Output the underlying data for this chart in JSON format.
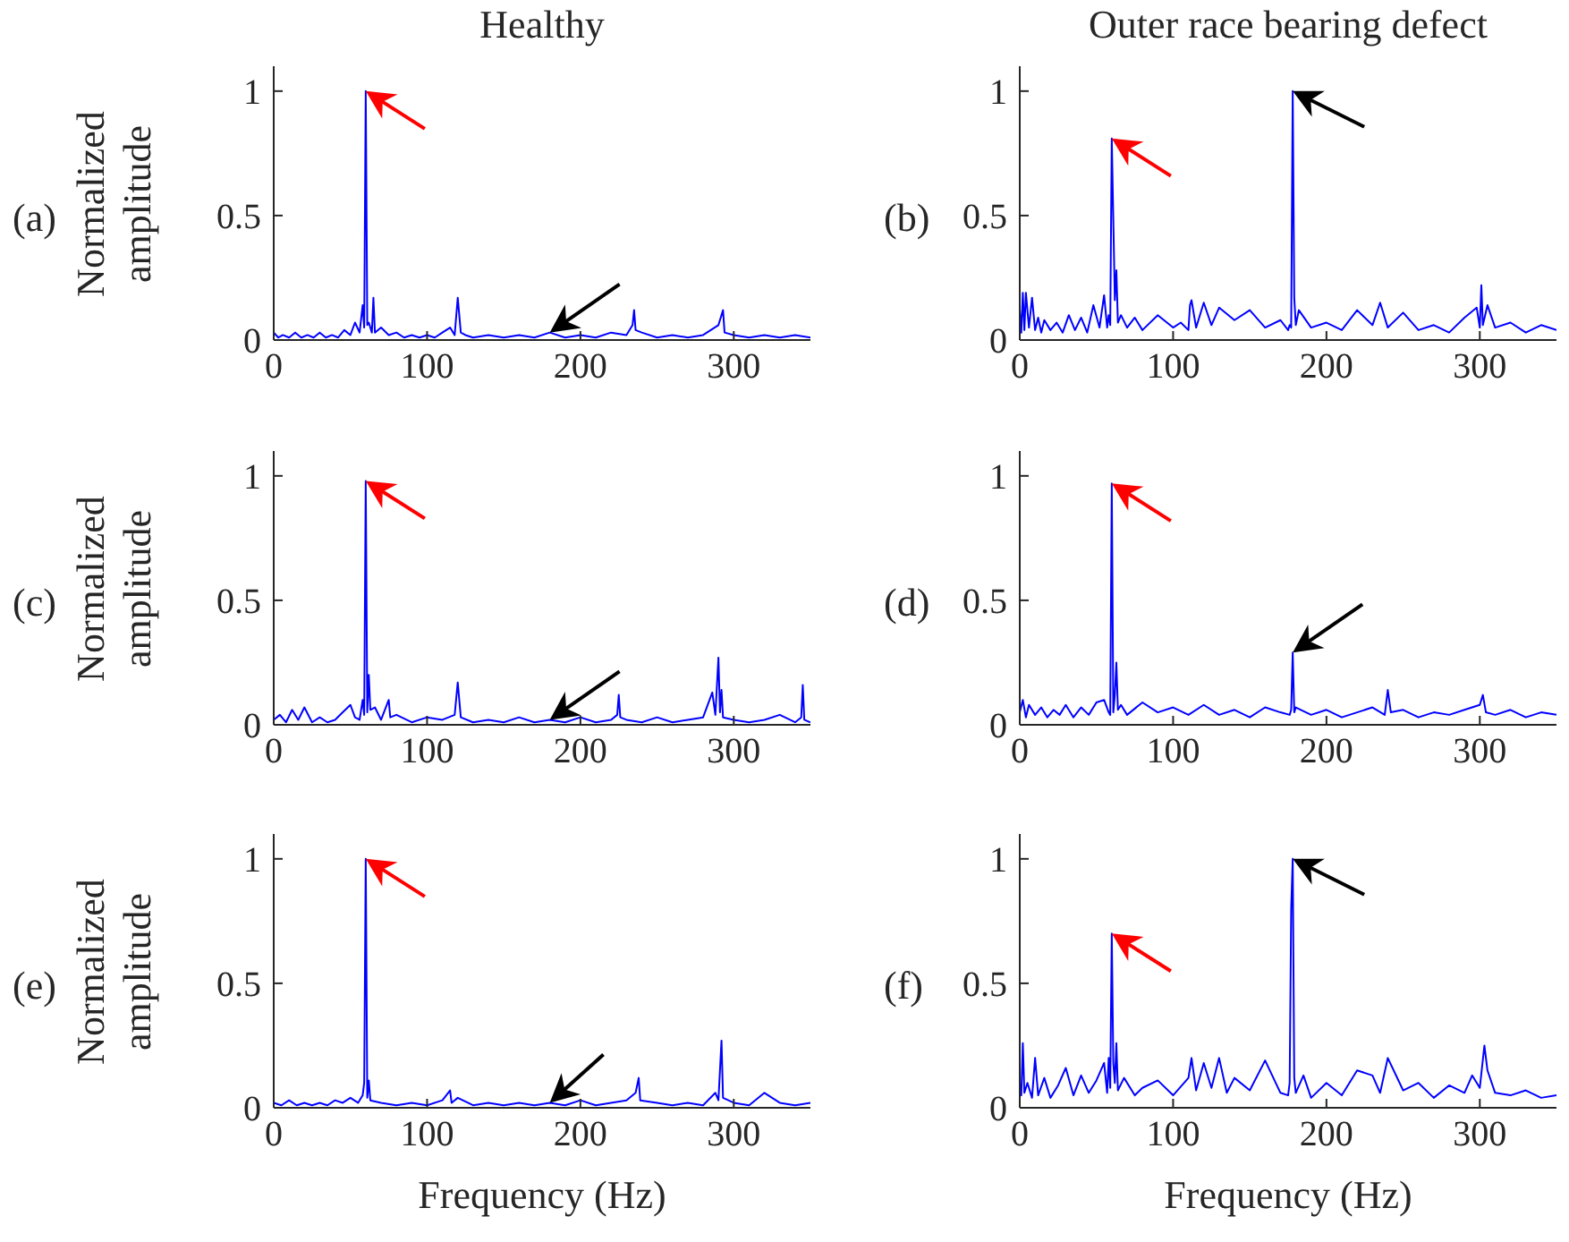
{
  "chart_data": [
    {
      "type": "line",
      "title": "Healthy",
      "ylabel": "Normalized amplitude",
      "annotations": [
        "(a)"
      ],
      "xlim": [
        0,
        350
      ],
      "xticks": [
        0,
        100,
        200,
        300
      ],
      "ylim": [
        0,
        1.1
      ],
      "yticks": [
        0,
        0.5,
        1
      ],
      "x": [
        0,
        3,
        6,
        10,
        14,
        18,
        22,
        26,
        30,
        34,
        38,
        42,
        46,
        50,
        53,
        56,
        58,
        59,
        60,
        61,
        62,
        64,
        65,
        66,
        70,
        75,
        80,
        85,
        90,
        95,
        100,
        105,
        110,
        115,
        118,
        120,
        122,
        125,
        130,
        140,
        150,
        160,
        170,
        180,
        190,
        200,
        210,
        220,
        230,
        234,
        235,
        236,
        240,
        250,
        260,
        270,
        280,
        290,
        293,
        294,
        300,
        310,
        320,
        330,
        340,
        350
      ],
      "series": [
        {
          "color": "#0000ff",
          "values": [
            0.03,
            0.01,
            0.02,
            0.01,
            0.03,
            0.01,
            0.02,
            0.01,
            0.03,
            0.01,
            0.02,
            0.01,
            0.04,
            0.02,
            0.07,
            0.03,
            0.14,
            0.05,
            1.0,
            0.06,
            0.07,
            0.03,
            0.17,
            0.03,
            0.05,
            0.02,
            0.03,
            0.01,
            0.02,
            0.01,
            0.02,
            0.01,
            0.03,
            0.05,
            0.02,
            0.17,
            0.03,
            0.02,
            0.01,
            0.02,
            0.01,
            0.02,
            0.01,
            0.03,
            0.01,
            0.02,
            0.01,
            0.03,
            0.02,
            0.06,
            0.12,
            0.04,
            0.03,
            0.01,
            0.02,
            0.01,
            0.02,
            0.06,
            0.12,
            0.03,
            0.02,
            0.01,
            0.02,
            0.01,
            0.02,
            0.01
          ]
        }
      ]
    },
    {
      "type": "line",
      "title": "Outer race bearing defect",
      "annotations": [
        "(b)"
      ],
      "xlim": [
        0,
        350
      ],
      "xticks": [
        0,
        100,
        200,
        300
      ],
      "ylim": [
        0,
        1.1
      ],
      "yticks": [
        0,
        0.5,
        1
      ],
      "x": [
        0,
        1,
        2,
        3,
        4,
        6,
        8,
        10,
        12,
        14,
        16,
        20,
        24,
        28,
        32,
        36,
        40,
        44,
        48,
        52,
        55,
        57,
        58,
        59,
        60,
        62,
        63,
        64,
        66,
        70,
        75,
        80,
        90,
        100,
        105,
        110,
        111,
        112,
        115,
        120,
        125,
        130,
        140,
        150,
        160,
        170,
        175,
        176,
        177,
        178,
        179,
        180,
        182,
        190,
        200,
        210,
        220,
        230,
        235,
        240,
        250,
        260,
        270,
        280,
        290,
        298,
        300,
        301,
        302,
        305,
        310,
        320,
        330,
        340,
        350
      ],
      "series": [
        {
          "color": "#0000ff",
          "values": [
            0.12,
            0.03,
            0.19,
            0.04,
            0.19,
            0.05,
            0.17,
            0.04,
            0.09,
            0.03,
            0.08,
            0.04,
            0.07,
            0.03,
            0.1,
            0.04,
            0.09,
            0.03,
            0.14,
            0.05,
            0.18,
            0.05,
            0.1,
            0.06,
            0.81,
            0.16,
            0.28,
            0.07,
            0.1,
            0.05,
            0.09,
            0.04,
            0.1,
            0.05,
            0.07,
            0.04,
            0.14,
            0.16,
            0.05,
            0.15,
            0.06,
            0.13,
            0.08,
            0.12,
            0.05,
            0.08,
            0.04,
            0.06,
            0.05,
            1.0,
            0.17,
            0.06,
            0.12,
            0.05,
            0.07,
            0.04,
            0.12,
            0.06,
            0.15,
            0.05,
            0.11,
            0.04,
            0.06,
            0.03,
            0.09,
            0.13,
            0.05,
            0.22,
            0.06,
            0.14,
            0.05,
            0.07,
            0.03,
            0.06,
            0.04
          ]
        }
      ]
    },
    {
      "type": "line",
      "ylabel": "Normalized amplitude",
      "annotations": [
        "(c)"
      ],
      "xlim": [
        0,
        350
      ],
      "xticks": [
        0,
        100,
        200,
        300
      ],
      "ylim": [
        0,
        1.1
      ],
      "yticks": [
        0,
        0.5,
        1
      ],
      "x": [
        0,
        4,
        8,
        12,
        16,
        20,
        25,
        30,
        35,
        40,
        45,
        50,
        53,
        56,
        58,
        59,
        60,
        61,
        62,
        63,
        66,
        70,
        75,
        76,
        80,
        90,
        100,
        110,
        118,
        120,
        122,
        130,
        140,
        150,
        160,
        170,
        180,
        190,
        200,
        210,
        220,
        224,
        225,
        226,
        230,
        240,
        250,
        260,
        270,
        280,
        286,
        288,
        290,
        291,
        292,
        293,
        300,
        310,
        320,
        330,
        340,
        344,
        345,
        346,
        350
      ],
      "series": [
        {
          "color": "#0000ff",
          "values": [
            0.02,
            0.04,
            0.01,
            0.06,
            0.02,
            0.07,
            0.01,
            0.03,
            0.01,
            0.02,
            0.05,
            0.08,
            0.03,
            0.02,
            0.1,
            0.04,
            0.98,
            0.05,
            0.2,
            0.06,
            0.07,
            0.02,
            0.1,
            0.03,
            0.04,
            0.01,
            0.03,
            0.02,
            0.04,
            0.17,
            0.03,
            0.01,
            0.02,
            0.01,
            0.03,
            0.01,
            0.02,
            0.01,
            0.03,
            0.01,
            0.02,
            0.04,
            0.12,
            0.03,
            0.02,
            0.01,
            0.03,
            0.01,
            0.02,
            0.03,
            0.13,
            0.04,
            0.27,
            0.05,
            0.14,
            0.03,
            0.02,
            0.01,
            0.02,
            0.04,
            0.01,
            0.03,
            0.16,
            0.02,
            0.01
          ]
        }
      ]
    },
    {
      "type": "line",
      "annotations": [
        "(d)"
      ],
      "xlim": [
        0,
        350
      ],
      "xticks": [
        0,
        100,
        200,
        300
      ],
      "ylim": [
        0,
        1.1
      ],
      "yticks": [
        0,
        0.5,
        1
      ],
      "x": [
        0,
        2,
        4,
        6,
        10,
        14,
        18,
        22,
        26,
        30,
        35,
        40,
        45,
        50,
        55,
        58,
        59,
        60,
        61,
        62,
        63,
        64,
        66,
        70,
        80,
        90,
        100,
        110,
        120,
        130,
        140,
        150,
        160,
        170,
        176,
        177,
        178,
        179,
        180,
        190,
        200,
        210,
        220,
        230,
        238,
        240,
        242,
        250,
        260,
        270,
        280,
        290,
        300,
        302,
        304,
        310,
        320,
        330,
        340,
        350
      ],
      "series": [
        {
          "color": "#0000ff",
          "values": [
            0.05,
            0.1,
            0.03,
            0.08,
            0.04,
            0.07,
            0.03,
            0.06,
            0.04,
            0.08,
            0.03,
            0.07,
            0.04,
            0.09,
            0.1,
            0.05,
            0.04,
            0.97,
            0.05,
            0.12,
            0.25,
            0.06,
            0.08,
            0.04,
            0.09,
            0.05,
            0.07,
            0.04,
            0.08,
            0.04,
            0.06,
            0.03,
            0.07,
            0.05,
            0.04,
            0.06,
            0.29,
            0.05,
            0.07,
            0.04,
            0.06,
            0.03,
            0.05,
            0.07,
            0.04,
            0.14,
            0.05,
            0.06,
            0.03,
            0.05,
            0.04,
            0.06,
            0.08,
            0.12,
            0.05,
            0.04,
            0.06,
            0.03,
            0.05,
            0.04
          ]
        }
      ]
    },
    {
      "type": "line",
      "ylabel": "Normalized amplitude",
      "xlabel": "Frequency (Hz)",
      "annotations": [
        "(e)"
      ],
      "xlim": [
        0,
        350
      ],
      "xticks": [
        0,
        100,
        200,
        300
      ],
      "ylim": [
        0,
        1.1
      ],
      "yticks": [
        0,
        0.5,
        1
      ],
      "x": [
        0,
        5,
        10,
        15,
        20,
        25,
        30,
        35,
        40,
        45,
        50,
        55,
        58,
        59,
        60,
        61,
        62,
        63,
        70,
        80,
        90,
        100,
        110,
        115,
        116,
        120,
        130,
        140,
        150,
        160,
        170,
        180,
        190,
        200,
        210,
        220,
        230,
        236,
        238,
        239,
        250,
        260,
        270,
        280,
        288,
        290,
        292,
        293,
        300,
        310,
        320,
        330,
        340,
        350
      ],
      "series": [
        {
          "color": "#0000ff",
          "values": [
            0.02,
            0.01,
            0.03,
            0.01,
            0.02,
            0.01,
            0.02,
            0.01,
            0.03,
            0.02,
            0.04,
            0.02,
            0.05,
            0.1,
            1.0,
            0.04,
            0.11,
            0.03,
            0.02,
            0.01,
            0.02,
            0.01,
            0.03,
            0.07,
            0.02,
            0.04,
            0.01,
            0.02,
            0.01,
            0.02,
            0.01,
            0.02,
            0.01,
            0.03,
            0.01,
            0.02,
            0.03,
            0.06,
            0.12,
            0.03,
            0.02,
            0.01,
            0.02,
            0.01,
            0.06,
            0.03,
            0.27,
            0.04,
            0.02,
            0.01,
            0.06,
            0.02,
            0.01,
            0.02
          ]
        }
      ]
    },
    {
      "type": "line",
      "xlabel": "Frequency (Hz)",
      "annotations": [
        "(f)"
      ],
      "xlim": [
        0,
        350
      ],
      "xticks": [
        0,
        100,
        200,
        300
      ],
      "ylim": [
        0,
        1.1
      ],
      "yticks": [
        0,
        0.5,
        1
      ],
      "x": [
        0,
        1,
        2,
        3,
        5,
        8,
        10,
        12,
        16,
        20,
        25,
        30,
        35,
        40,
        45,
        50,
        55,
        57,
        58,
        59,
        60,
        61,
        62,
        63,
        64,
        68,
        75,
        80,
        90,
        100,
        110,
        112,
        115,
        120,
        125,
        130,
        135,
        140,
        150,
        160,
        170,
        175,
        176,
        177,
        178,
        179,
        180,
        185,
        190,
        200,
        210,
        220,
        230,
        235,
        240,
        250,
        260,
        270,
        280,
        290,
        295,
        300,
        303,
        305,
        310,
        320,
        330,
        340,
        350
      ],
      "series": [
        {
          "color": "#0000ff",
          "values": [
            0.1,
            0.05,
            0.26,
            0.06,
            0.1,
            0.04,
            0.2,
            0.05,
            0.12,
            0.04,
            0.09,
            0.16,
            0.05,
            0.13,
            0.06,
            0.11,
            0.18,
            0.06,
            0.2,
            0.08,
            0.7,
            0.18,
            0.1,
            0.26,
            0.07,
            0.12,
            0.05,
            0.08,
            0.11,
            0.05,
            0.12,
            0.2,
            0.07,
            0.18,
            0.08,
            0.2,
            0.06,
            0.12,
            0.07,
            0.19,
            0.06,
            0.05,
            0.1,
            0.8,
            1.0,
            0.12,
            0.06,
            0.13,
            0.04,
            0.1,
            0.05,
            0.15,
            0.13,
            0.06,
            0.2,
            0.07,
            0.1,
            0.04,
            0.09,
            0.06,
            0.13,
            0.08,
            0.25,
            0.15,
            0.06,
            0.05,
            0.07,
            0.04,
            0.05
          ]
        }
      ]
    }
  ]
}
